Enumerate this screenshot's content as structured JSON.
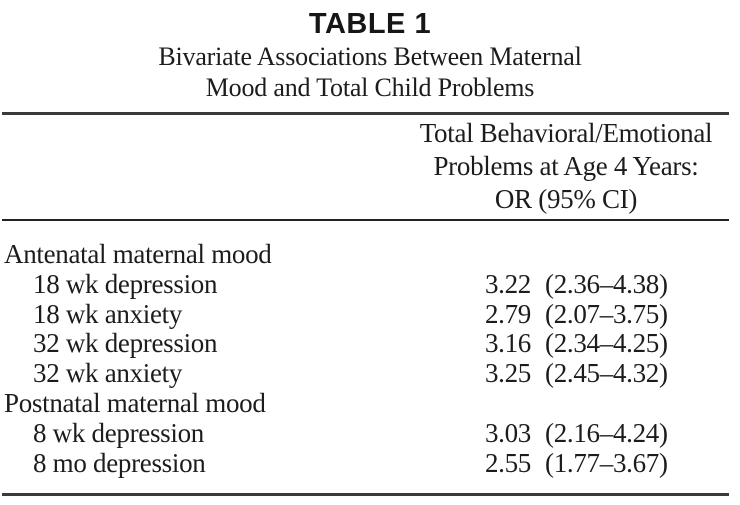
{
  "table": {
    "label": "TABLE 1",
    "title_line1": "Bivariate Associations Between Maternal",
    "title_line2": "Mood and Total Child Problems",
    "column_header": {
      "line1": "Total Behavioral/Emotional",
      "line2": "Problems at Age 4 Years:",
      "line3": "OR (95% CI)"
    },
    "rows": [
      {
        "label": "Antenatal maternal mood",
        "or": "",
        "ci": ""
      },
      {
        "label": "18 wk depression",
        "or": "3.22",
        "ci": "(2.36–4.38)"
      },
      {
        "label": "18 wk anxiety",
        "or": "2.79",
        "ci": "(2.07–3.75)"
      },
      {
        "label": "32 wk depression",
        "or": "3.16",
        "ci": "(2.34–4.25)"
      },
      {
        "label": "32 wk anxiety",
        "or": "3.25",
        "ci": "(2.45–4.32)"
      },
      {
        "label": "Postnatal maternal mood",
        "or": "",
        "ci": ""
      },
      {
        "label": "8 wk depression",
        "or": "3.03",
        "ci": "(2.16–4.24)"
      },
      {
        "label": "8 mo depression",
        "or": "2.55",
        "ci": "(1.77–3.67)"
      }
    ]
  }
}
